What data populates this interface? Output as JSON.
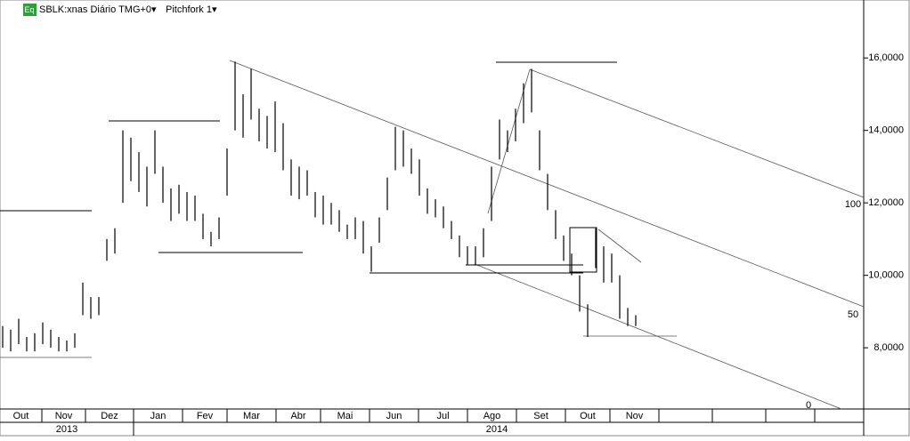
{
  "chart_data": {
    "type": "ohlc",
    "title": "SBLK:xnas Diário TMG+0▾",
    "study": "Pitchfork 1▾",
    "icon": "Eq",
    "ylim": [
      6.31,
      17.6
    ],
    "yticks": [
      {
        "value": 8,
        "label": "8,0000"
      },
      {
        "value": 10,
        "label": "10,0000"
      },
      {
        "value": 12,
        "label": "12,0000"
      },
      {
        "value": 14,
        "label": "14,0000"
      },
      {
        "value": 16,
        "label": "16,0000"
      }
    ],
    "months": [
      "Out",
      "Nov",
      "Dez",
      "Jan",
      "Fev",
      "Mar",
      "Abr",
      "Mai",
      "Jun",
      "Jul",
      "Ago",
      "Set",
      "Out",
      "Nov"
    ],
    "years": [
      "2013",
      "2014"
    ],
    "pitchfork_labels": [
      "100",
      "50",
      "0"
    ],
    "color": "#000000",
    "series": [
      {
        "name": "high",
        "values": [
          8.6,
          8.5,
          8.8,
          8.3,
          8.4,
          8.7,
          8.5,
          8.3,
          8.2,
          8.4,
          9.8,
          9.4,
          9.4,
          11.0,
          11.3,
          14.0,
          13.8,
          13.4,
          13.0,
          14.0,
          13.0,
          12.4,
          12.5,
          12.3,
          12.2,
          11.7,
          11.2,
          11.6,
          13.5,
          15.9,
          15.0,
          15.7,
          14.6,
          14.4,
          14.8,
          14.2,
          13.2,
          13.0,
          12.9,
          12.3,
          12.2,
          12.0,
          11.8,
          11.4,
          11.6,
          11.5,
          10.8,
          11.6,
          12.7,
          14.1,
          14.0,
          13.5,
          13.2,
          12.4,
          12.1,
          11.9,
          11.5,
          11.1,
          10.8,
          10.8,
          11.3,
          13.0,
          14.3,
          14.0,
          14.6,
          15.3,
          15.7,
          14.0,
          12.8,
          11.8,
          11.1,
          10.6,
          10.0,
          9.2,
          11.3,
          10.8,
          10.6,
          10.0,
          9.1,
          8.9
        ]
      },
      {
        "name": "low",
        "values": [
          8.0,
          7.9,
          8.1,
          7.9,
          7.9,
          8.1,
          8.0,
          7.9,
          7.9,
          8.0,
          8.9,
          8.8,
          8.9,
          10.4,
          10.6,
          12.0,
          12.6,
          12.3,
          11.9,
          12.8,
          12.0,
          11.5,
          11.7,
          11.5,
          11.5,
          11.0,
          10.8,
          11.0,
          12.2,
          14.0,
          13.8,
          14.3,
          13.7,
          13.5,
          13.4,
          12.9,
          12.2,
          12.1,
          12.2,
          11.6,
          11.4,
          11.4,
          11.2,
          11.0,
          11.0,
          10.6,
          10.1,
          10.9,
          11.8,
          12.9,
          13.0,
          12.8,
          12.2,
          11.7,
          11.6,
          11.3,
          11.0,
          10.5,
          10.3,
          10.3,
          10.5,
          11.5,
          13.2,
          13.4,
          13.7,
          14.2,
          14.5,
          12.9,
          11.8,
          11.0,
          10.4,
          10.0,
          9.0,
          8.3,
          10.2,
          9.8,
          9.8,
          8.8,
          8.6,
          8.6
        ]
      }
    ]
  }
}
